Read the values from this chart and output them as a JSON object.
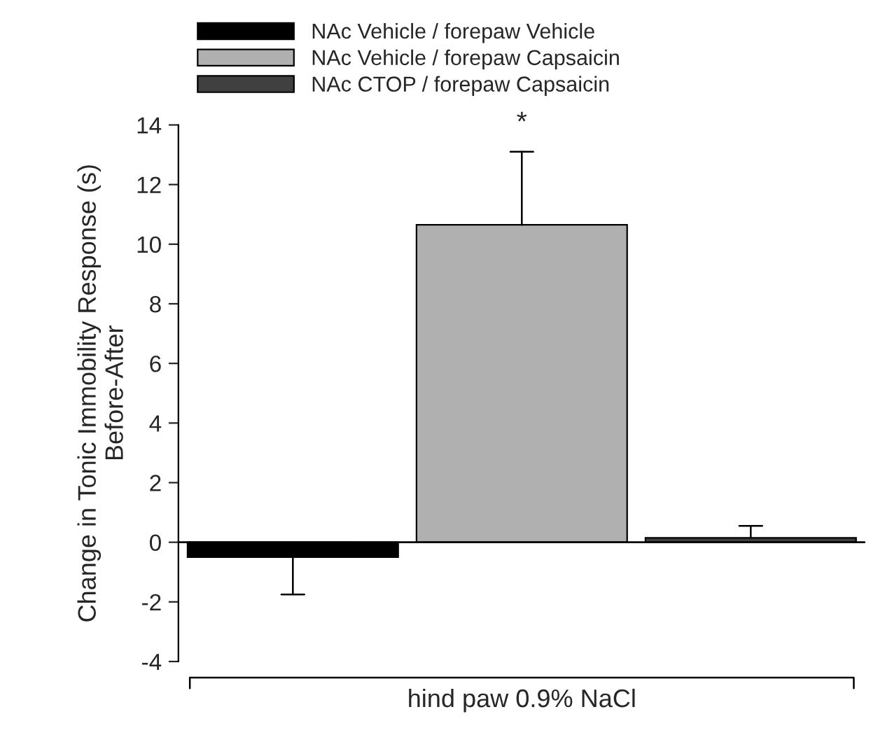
{
  "chart_data": {
    "type": "bar",
    "categories": [
      null,
      null,
      null
    ],
    "series": [
      {
        "name": "NAc Vehicle / forepaw Vehicle",
        "color": "#000000",
        "values": [
          -0.5,
          null,
          null
        ],
        "errors": [
          [
            -1.75,
            -0.5
          ],
          null,
          null
        ]
      },
      {
        "name": "NAc Vehicle / forepaw Capsaicin",
        "color": "#b0b0b0",
        "values": [
          null,
          10.65,
          null
        ],
        "errors": [
          null,
          [
            10.65,
            13.1
          ],
          null
        ]
      },
      {
        "name": "NAc CTOP / forepaw Capsaicin",
        "color": "#404040",
        "values": [
          null,
          null,
          0.15
        ],
        "errors": [
          null,
          null,
          [
            0.15,
            0.55
          ]
        ]
      }
    ],
    "ylabel": "Change in Tonic Immobility Response (s)\nBefore-After",
    "xlabel": "hind paw 0.9% NaCl",
    "ylim": [
      -4,
      14
    ],
    "yticks": [
      -4,
      -2,
      0,
      2,
      4,
      6,
      8,
      10,
      12,
      14
    ],
    "ref_lines": [
      {
        "axis": "y",
        "value": 0,
        "color": "#000000"
      }
    ],
    "annotations": [
      "*"
    ],
    "legend": "top left",
    "grid": false
  }
}
